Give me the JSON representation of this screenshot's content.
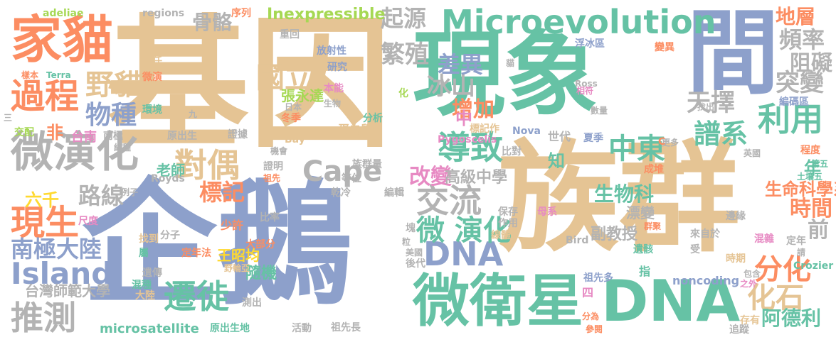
{
  "words": [
    {
      "text": "基因",
      "color": "#e5c494"
    },
    {
      "text": "企鵝",
      "color": "#8da0cb"
    },
    {
      "text": "族群",
      "color": "#e5c494"
    },
    {
      "text": "現象",
      "color": "#66c2a5"
    },
    {
      "text": "間",
      "color": "#8da0cb"
    },
    {
      "text": "家貓",
      "color": "#fc8d62"
    },
    {
      "text": "微衛星",
      "color": "#66c2a5"
    },
    {
      "text": "DNA",
      "color": "#66c2a5"
    },
    {
      "text": "微演化",
      "color": "#b3b3b3"
    },
    {
      "text": "Microevolution",
      "color": "#66c2a5"
    },
    {
      "text": "過程",
      "color": "#fc8d62"
    },
    {
      "text": "導致",
      "color": "#66c2a5"
    },
    {
      "text": "對偶",
      "color": "#e5c494"
    },
    {
      "text": "交流",
      "color": "#b3b3b3"
    },
    {
      "text": "推測",
      "color": "#b3b3b3"
    },
    {
      "text": "遷徙",
      "color": "#66c2a5"
    },
    {
      "text": "現生",
      "color": "#fc8d62"
    },
    {
      "text": "Island",
      "color": "#8da0cb"
    },
    {
      "text": "DNA",
      "color": "#8da0cb"
    },
    {
      "text": "Cape",
      "color": "#b3b3b3"
    },
    {
      "text": "微 演化",
      "color": "#66c2a5"
    },
    {
      "text": "譜系",
      "color": "#66c2a5"
    },
    {
      "text": "利用",
      "color": "#66c2a5"
    },
    {
      "text": "化石",
      "color": "#e5c494"
    },
    {
      "text": "分化",
      "color": "#fc8d62"
    },
    {
      "text": "中東",
      "color": "#66c2a5"
    },
    {
      "text": "野貓",
      "color": "#e5c494"
    },
    {
      "text": "國立",
      "color": "#e5c494"
    },
    {
      "text": "物種",
      "color": "#8da0cb"
    },
    {
      "text": "繁殖",
      "color": "#b3b3b3"
    },
    {
      "text": "冰山",
      "color": "#b3b3b3"
    },
    {
      "text": "差異",
      "color": "#8da0cb"
    },
    {
      "text": "天擇",
      "color": "#b3b3b3"
    },
    {
      "text": "突變",
      "color": "#b3b3b3"
    },
    {
      "text": "頻率",
      "color": "#b3b3b3"
    },
    {
      "text": "阻礙",
      "color": "#b3b3b3"
    },
    {
      "text": "地層",
      "color": "#fc8d62"
    },
    {
      "text": "起源",
      "color": "#b3b3b3"
    },
    {
      "text": "Inexpressible",
      "color": "#a6d854"
    },
    {
      "text": "骨骼",
      "color": "#b3b3b3"
    },
    {
      "text": "改變",
      "color": "#e78ac3"
    },
    {
      "text": "路線",
      "color": "#b3b3b3"
    },
    {
      "text": "標記",
      "color": "#fc8d62"
    },
    {
      "text": "增加",
      "color": "#fc8d62"
    },
    {
      "text": "南極大陸",
      "color": "#8da0cb"
    },
    {
      "text": "時間",
      "color": "#fc8d62"
    },
    {
      "text": "阿德利",
      "color": "#66c2a5"
    },
    {
      "text": "生物科",
      "color": "#66c2a5"
    },
    {
      "text": "生命科學系",
      "color": "#fc8d62"
    },
    {
      "text": "知",
      "color": "#66c2a5"
    },
    {
      "text": "年",
      "color": "#66c2a5"
    },
    {
      "text": "前",
      "color": "#b3b3b3"
    },
    {
      "text": "非",
      "color": "#fc8d62"
    },
    {
      "text": "中",
      "color": "#e78ac3"
    },
    {
      "text": "六千",
      "color": "#ffd92f"
    },
    {
      "text": "隨機",
      "color": "#66c2a5"
    },
    {
      "text": "高級中學",
      "color": "#b3b3b3"
    },
    {
      "text": "王昭均",
      "color": "#ffd92f"
    },
    {
      "text": "老師",
      "color": "#66c2a5"
    },
    {
      "text": "台灣師範大學",
      "color": "#b3b3b3"
    },
    {
      "text": "副教授",
      "color": "#b3b3b3"
    },
    {
      "text": "漂變",
      "color": "#b3b3b3"
    },
    {
      "text": "張永達",
      "color": "#a6d854"
    },
    {
      "text": "microsatellite",
      "color": "#66c2a5"
    },
    {
      "text": "noncoding",
      "color": "#8da0cb"
    },
    {
      "text": "台南",
      "color": "#e78ac3"
    },
    {
      "text": "南極",
      "color": "#b3b3b3"
    },
    {
      "text": "蛋白質",
      "color": "#e5c494"
    },
    {
      "text": "世代",
      "color": "#b3b3b3"
    },
    {
      "text": "夏季",
      "color": "#8da0cb"
    },
    {
      "text": "adeliae",
      "color": "#a6d854"
    },
    {
      "text": "regions",
      "color": "#b3b3b3"
    },
    {
      "text": "序列",
      "color": "#fc8d62"
    },
    {
      "text": "重回",
      "color": "#b3b3b3"
    },
    {
      "text": "放射性",
      "color": "#8da0cb"
    },
    {
      "text": "研究",
      "color": "#8da0cb"
    },
    {
      "text": "責任",
      "color": "#e5c494"
    },
    {
      "text": "微演",
      "color": "#fc8d62"
    },
    {
      "text": "樣本",
      "color": "#fc8d62"
    },
    {
      "text": "Terra",
      "color": "#66c2a5"
    },
    {
      "text": "日本",
      "color": "#b3b3b3"
    },
    {
      "text": "本能",
      "color": "#e78ac3"
    },
    {
      "text": "環境",
      "color": "#66c2a5"
    },
    {
      "text": "九",
      "color": "#b3b3b3"
    },
    {
      "text": "冬季",
      "color": "#fc8d62"
    },
    {
      "text": "生物",
      "color": "#b3b3b3"
    },
    {
      "text": "分析",
      "color": "#66c2a5"
    },
    {
      "text": "化",
      "color": "#a6d854"
    },
    {
      "text": "Pygoscelis",
      "color": "#e78ac3"
    },
    {
      "text": "標記作",
      "color": "#e5c494"
    },
    {
      "text": "交配",
      "color": "#a6d854"
    },
    {
      "text": "原出生",
      "color": "#b3b3b3"
    },
    {
      "text": "證據",
      "color": "#b3b3b3"
    },
    {
      "text": "Bay",
      "color": "#e5c494"
    },
    {
      "text": "Nova",
      "color": "#8da0cb"
    },
    {
      "text": "純種",
      "color": "#b3b3b3"
    },
    {
      "text": "機會",
      "color": "#b3b3b3"
    },
    {
      "text": "族群量",
      "color": "#b3b3b3"
    },
    {
      "text": "比對",
      "color": "#b3b3b3"
    },
    {
      "text": "Royds",
      "color": "#b3b3b3"
    },
    {
      "text": "證明",
      "color": "#b3b3b3"
    },
    {
      "text": "祖先",
      "color": "#fc8d62"
    },
    {
      "text": "等位",
      "color": "#b3b3b3"
    },
    {
      "text": "乾冷",
      "color": "#b3b3b3"
    },
    {
      "text": "編輯",
      "color": "#b3b3b3"
    },
    {
      "text": "例子",
      "color": "#b3b3b3"
    },
    {
      "text": "尺度",
      "color": "#e78ac3"
    },
    {
      "text": "比率",
      "color": "#b3b3b3"
    },
    {
      "text": "少許",
      "color": "#fc8d62"
    },
    {
      "text": "分子",
      "color": "#b3b3b3"
    },
    {
      "text": "大部分",
      "color": "#fc8d62"
    },
    {
      "text": "找到",
      "color": "#e5c494"
    },
    {
      "text": "定年法",
      "color": "#fc8d62"
    },
    {
      "text": "野輪亞",
      "color": "#e5c494"
    },
    {
      "text": "屬",
      "color": "#66c2a5"
    },
    {
      "text": "遺傳",
      "color": "#b3b3b3"
    },
    {
      "text": "混種",
      "color": "#66c2a5"
    },
    {
      "text": "大陸",
      "color": "#e5c494"
    },
    {
      "text": "測出",
      "color": "#b3b3b3"
    },
    {
      "text": "原出生地",
      "color": "#66c2a5"
    },
    {
      "text": "活動",
      "color": "#b3b3b3"
    },
    {
      "text": "祖先長",
      "color": "#b3b3b3"
    },
    {
      "text": "美國",
      "color": "#b3b3b3"
    },
    {
      "text": "後代",
      "color": "#b3b3b3"
    },
    {
      "text": "粒",
      "color": "#b3b3b3"
    },
    {
      "text": "塊",
      "color": "#b3b3b3"
    },
    {
      "text": "保存",
      "color": "#b3b3b3"
    },
    {
      "text": "作用",
      "color": "#b3b3b3"
    },
    {
      "text": "線體",
      "color": "#e5c494"
    },
    {
      "text": "母系",
      "color": "#e78ac3"
    },
    {
      "text": "四",
      "color": "#e78ac3"
    },
    {
      "text": "分為",
      "color": "#fc8d62"
    },
    {
      "text": "參閱",
      "color": "#fc8d62"
    },
    {
      "text": "祖先多",
      "color": "#8da0cb"
    },
    {
      "text": "指",
      "color": "#66c2a5"
    },
    {
      "text": "Bird",
      "color": "#b3b3b3"
    },
    {
      "text": "遺骸",
      "color": "#66c2a5"
    },
    {
      "text": "受",
      "color": "#b3b3b3"
    },
    {
      "text": "時期",
      "color": "#e5c494"
    },
    {
      "text": "之外",
      "color": "#e78ac3"
    },
    {
      "text": "包含",
      "color": "#b3b3b3"
    },
    {
      "text": "存有",
      "color": "#e5c494"
    },
    {
      "text": "追蹤",
      "color": "#b3b3b3"
    },
    {
      "text": "Crozier",
      "color": "#66c2a5"
    },
    {
      "text": "混雜",
      "color": "#e78ac3"
    },
    {
      "text": "請",
      "color": "#b3b3b3"
    },
    {
      "text": "定年",
      "color": "#b3b3b3"
    },
    {
      "text": "來自於",
      "color": "#b3b3b3"
    },
    {
      "text": "邊緣",
      "color": "#b3b3b3"
    },
    {
      "text": "群聚",
      "color": "#fc8d62"
    },
    {
      "text": "成堆",
      "color": "#fc8d62"
    },
    {
      "text": "第五",
      "color": "#66c2a5"
    },
    {
      "text": "土壤五",
      "color": "#66c2a5"
    },
    {
      "text": "程度",
      "color": "#fc8d62"
    },
    {
      "text": "英國",
      "color": "#b3b3b3"
    },
    {
      "text": "更多",
      "color": "#b3b3b3"
    },
    {
      "text": "C",
      "color": "#fc8d62"
    },
    {
      "text": "編碼區",
      "color": "#8da0cb"
    },
    {
      "text": "找出",
      "color": "#b3b3b3"
    },
    {
      "text": "數量",
      "color": "#b3b3b3"
    },
    {
      "text": "相符",
      "color": "#e78ac3"
    },
    {
      "text": "Ross",
      "color": "#b3b3b3"
    },
    {
      "text": "浮冰區",
      "color": "#8da0cb"
    },
    {
      "text": "變異",
      "color": "#fc8d62"
    },
    {
      "text": "貓",
      "color": "#b3b3b3"
    },
    {
      "text": "三",
      "color": "#b3b3b3"
    }
  ]
}
